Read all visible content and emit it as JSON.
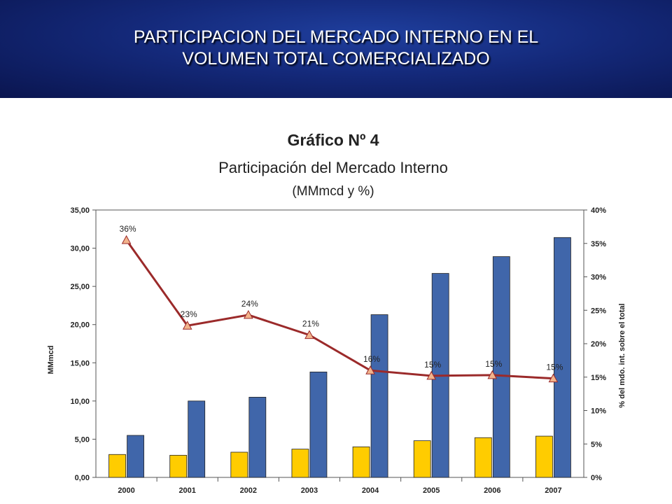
{
  "slide": {
    "title_line1": "PARTICIPACION DEL MERCADO INTERNO EN EL",
    "title_line2": "VOLUMEN TOTAL COMERCIALIZADO"
  },
  "chart_data": {
    "type": "bar",
    "title": "Gráfico Nº 4",
    "subtitle": "Participación del Mercado Interno",
    "unit_note": "(MMmcd y %)",
    "categories": [
      "2000",
      "2001",
      "2002",
      "2003",
      "2004",
      "2005",
      "2006",
      "2007"
    ],
    "ylabel": "MMmcd",
    "y2label": "% del mdo. int. sobre el total",
    "ylim": [
      0,
      35
    ],
    "y2lim": [
      0,
      40
    ],
    "yticks": [
      "0,00",
      "5,00",
      "10,00",
      "15,00",
      "20,00",
      "25,00",
      "30,00",
      "35,00"
    ],
    "y2ticks": [
      "0%",
      "5%",
      "10%",
      "15%",
      "20%",
      "25%",
      "30%",
      "35%",
      "40%"
    ],
    "series": [
      {
        "values": [
          3.0,
          2.9,
          3.3,
          3.7,
          4.0,
          4.8,
          5.2,
          5.4
        ],
        "color": "#FFCC00",
        "kind": "bar"
      },
      {
        "values": [
          5.5,
          10.0,
          10.5,
          13.8,
          21.3,
          26.7,
          28.9,
          31.4
        ],
        "color": "#4066AA",
        "kind": "bar"
      },
      {
        "values": [
          35.5,
          22.7,
          24.3,
          21.3,
          16.0,
          15.2,
          15.3,
          14.8
        ],
        "labels": [
          "36%",
          "23%",
          "24%",
          "21%",
          "16%",
          "15%",
          "15%",
          "15%"
        ],
        "color": "#9B2A2A",
        "marker_color": "#F2B48C",
        "kind": "line",
        "axis": "right"
      }
    ],
    "grid": false,
    "legend": "none"
  }
}
